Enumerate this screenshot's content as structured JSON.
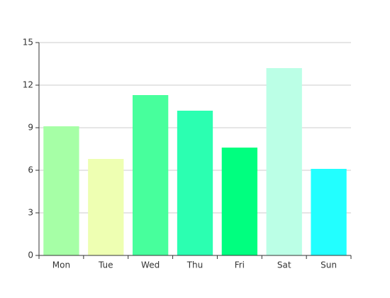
{
  "chart_data": {
    "type": "bar",
    "categories": [
      "Mon",
      "Tue",
      "Wed",
      "Thu",
      "Fri",
      "Sat",
      "Sun"
    ],
    "values": [
      9.1,
      6.8,
      11.3,
      10.2,
      7.6,
      13.2,
      6.1
    ],
    "colors": [
      "#a6ffa6",
      "#eeffb2",
      "#47ff9c",
      "#2bffb1",
      "#00ff7f",
      "#bbffe6",
      "#22ffff"
    ],
    "ylim": [
      0,
      15
    ],
    "yticks": [
      0,
      3,
      6,
      9,
      12,
      15
    ],
    "grid": true
  }
}
